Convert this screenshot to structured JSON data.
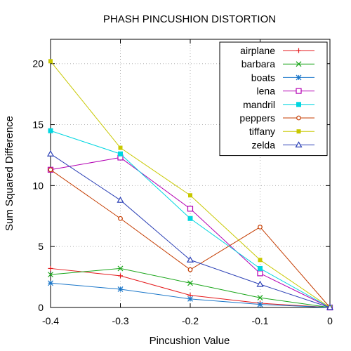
{
  "chart_data": {
    "type": "line",
    "title": "PHASH PINCUSHION DISTORTION",
    "xlabel": "Pincushion Value",
    "ylabel": "Sum Squared Difference",
    "xlim": [
      -0.4,
      0
    ],
    "ylim": [
      0,
      22
    ],
    "xticks": [
      -0.4,
      -0.3,
      -0.2,
      -0.1,
      0
    ],
    "xtick_labels": [
      "-0.4",
      "-0.3",
      "-0.2",
      "-0.1",
      "0"
    ],
    "yticks": [
      0,
      5,
      10,
      15,
      20
    ],
    "ytick_labels": [
      "0",
      "5",
      "10",
      "15",
      "20"
    ],
    "grid": true,
    "legend_position": "top-right",
    "x": [
      -0.4,
      -0.3,
      -0.2,
      -0.1,
      0
    ],
    "series": [
      {
        "name": "airplane",
        "color": "#e41a1c",
        "marker": "plus",
        "values": [
          3.2,
          2.6,
          1.0,
          0.35,
          0
        ]
      },
      {
        "name": "barbara",
        "color": "#1aa61a",
        "marker": "cross",
        "values": [
          2.7,
          3.2,
          2.0,
          0.8,
          0
        ]
      },
      {
        "name": "boats",
        "color": "#1a76c9",
        "marker": "star",
        "values": [
          2.0,
          1.5,
          0.7,
          0.25,
          0
        ]
      },
      {
        "name": "lena",
        "color": "#b300b3",
        "marker": "square-open",
        "values": [
          11.3,
          12.3,
          8.1,
          2.8,
          0
        ]
      },
      {
        "name": "mandril",
        "color": "#00d6e0",
        "marker": "square",
        "values": [
          14.5,
          12.6,
          7.3,
          3.2,
          0
        ]
      },
      {
        "name": "peppers",
        "color": "#c43c00",
        "marker": "circle-open",
        "values": [
          11.3,
          7.3,
          3.1,
          6.6,
          0
        ]
      },
      {
        "name": "tiffany",
        "color": "#c8c800",
        "marker": "circle",
        "values": [
          20.2,
          13.1,
          9.2,
          3.9,
          0
        ]
      },
      {
        "name": "zelda",
        "color": "#2a3fb5",
        "marker": "triangle",
        "values": [
          12.6,
          8.8,
          3.9,
          1.9,
          0
        ]
      }
    ]
  }
}
